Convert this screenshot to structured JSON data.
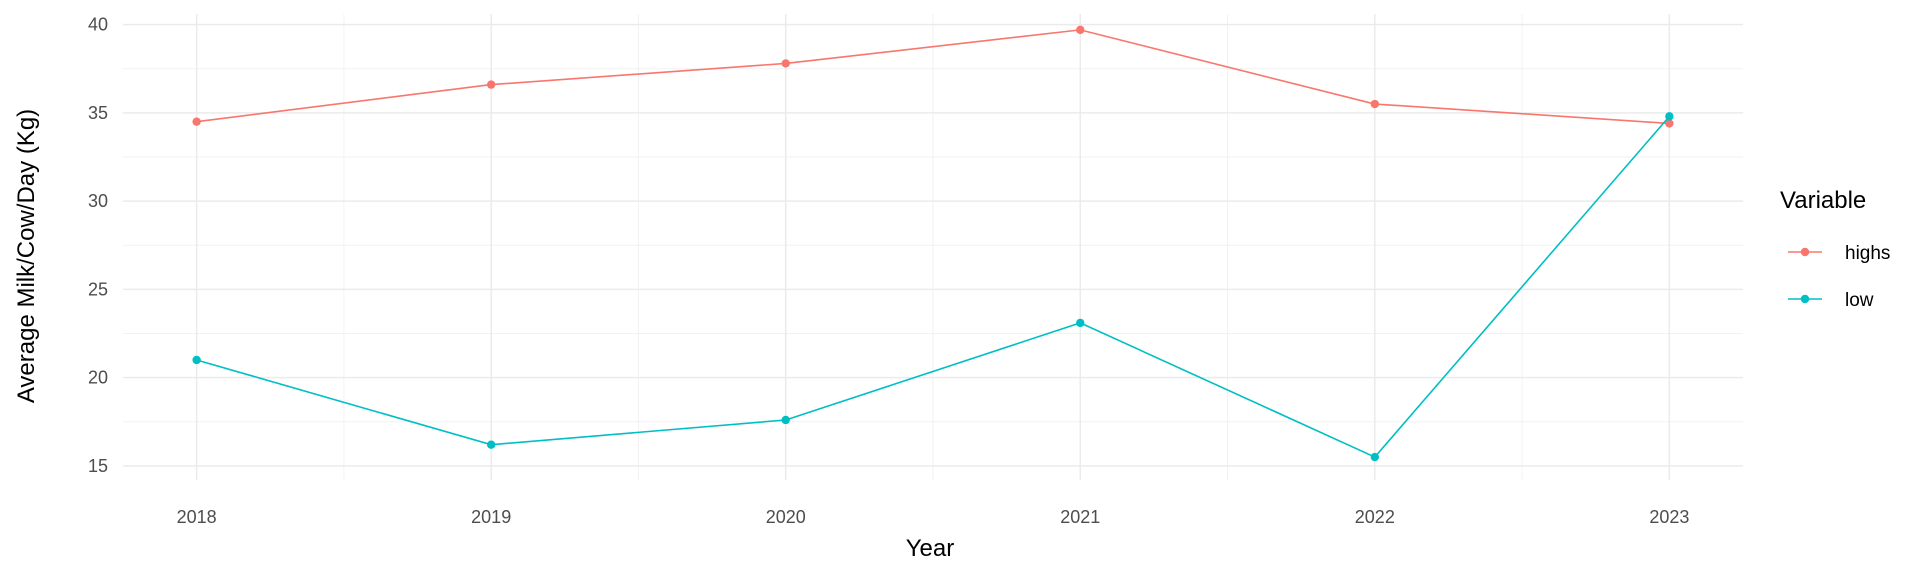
{
  "chart_data": {
    "type": "line",
    "title": "",
    "xlabel": "Year",
    "ylabel": "Average Milk/Cow/Day (Kg)",
    "x": [
      2018,
      2019,
      2020,
      2021,
      2022,
      2023
    ],
    "x_tick_labels": [
      "2018",
      "2019",
      "2020",
      "2021",
      "2022",
      "2023"
    ],
    "y_ticks": [
      15,
      20,
      25,
      30,
      35,
      40
    ],
    "y_tick_labels": [
      "15",
      "20",
      "25",
      "30",
      "35",
      "40"
    ],
    "xlim": [
      2017.75,
      2023.25
    ],
    "ylim": [
      14.2,
      40.6
    ],
    "grid": true,
    "legend": {
      "title": "Variable",
      "position": "right",
      "entries": [
        "highs",
        "low"
      ]
    },
    "series": [
      {
        "name": "highs",
        "color": "#F8766D",
        "values": [
          34.5,
          36.6,
          37.8,
          39.7,
          35.5,
          34.4
        ]
      },
      {
        "name": "low",
        "color": "#00BFC4",
        "values": [
          21.0,
          16.2,
          17.6,
          23.1,
          15.5,
          34.8
        ]
      }
    ]
  }
}
